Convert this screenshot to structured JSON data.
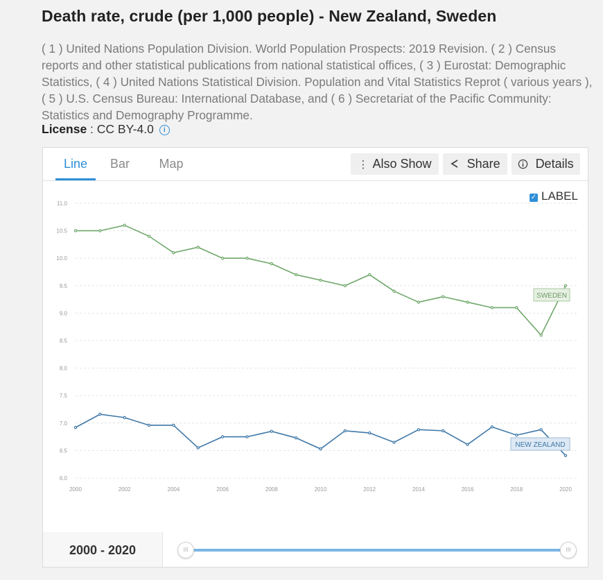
{
  "header": {
    "title": "Death rate, crude (per 1,000 people) - New Zealand, Sweden",
    "source": "( 1 ) United Nations Population Division. World Population Prospects: 2019 Revision. ( 2 ) Census reports and other statistical publications from national statistical offices, ( 3 ) Eurostat: Demographic Statistics, ( 4 ) United Nations Statistical Division. Population and Vital Statistics Reprot ( various years ), ( 5 ) U.S. Census Bureau: International Database, and ( 6 ) Secretariat of the Pacific Community: Statistics and Demography Programme.",
    "license_label": "License",
    "license_value": "CC BY-4.0"
  },
  "tabs": [
    {
      "label": "Line",
      "active": true
    },
    {
      "label": "Bar",
      "active": false
    },
    {
      "label": "Map",
      "active": false
    }
  ],
  "toolbar": {
    "also_show": "Also Show",
    "share": "Share",
    "details": "Details"
  },
  "label_toggle": {
    "label": "LABEL",
    "checked": true
  },
  "range": {
    "label": "2000 - 2020"
  },
  "chart_data": {
    "type": "line",
    "title": "",
    "xlabel": "",
    "ylabel": "",
    "x": [
      2000,
      2001,
      2002,
      2003,
      2004,
      2005,
      2006,
      2007,
      2008,
      2009,
      2010,
      2011,
      2012,
      2013,
      2014,
      2015,
      2016,
      2017,
      2018,
      2019,
      2020
    ],
    "ylim": [
      6.0,
      11.0
    ],
    "yticks": [
      "6.0",
      "6.5",
      "7.0",
      "7.5",
      "8.0",
      "8.5",
      "9.0",
      "9.5",
      "10.0",
      "10.5",
      "11.0"
    ],
    "xticks": [
      "2000",
      "2002",
      "2004",
      "2006",
      "2008",
      "2010",
      "2012",
      "2014",
      "2016",
      "2018",
      "2020"
    ],
    "grid": true,
    "series": [
      {
        "name": "SWEDEN",
        "color": "#6fa76a",
        "values": [
          10.5,
          10.5,
          10.6,
          10.4,
          10.1,
          10.2,
          10.0,
          10.0,
          9.9,
          9.7,
          9.6,
          9.5,
          9.7,
          9.4,
          9.2,
          9.3,
          9.2,
          9.1,
          9.1,
          8.6,
          9.5
        ]
      },
      {
        "name": "NEW ZEALAND",
        "color": "#3f78a8",
        "values": [
          6.92,
          7.16,
          7.1,
          6.96,
          6.96,
          6.55,
          6.75,
          6.75,
          6.85,
          6.73,
          6.53,
          6.86,
          6.82,
          6.65,
          6.88,
          6.86,
          6.61,
          6.93,
          6.78,
          6.88,
          6.41
        ]
      }
    ]
  }
}
